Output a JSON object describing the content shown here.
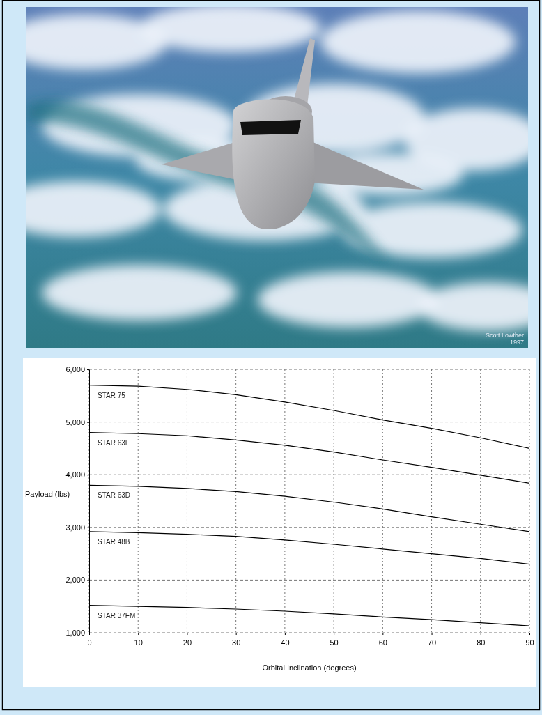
{
  "image": {
    "credit": [
      "Scott Lowther",
      "1997"
    ]
  },
  "chart_data": {
    "type": "line",
    "x_label": "Orbital Inclination (degrees)",
    "y_label": "Payload (lbs)",
    "x": [
      0,
      10,
      20,
      30,
      40,
      50,
      60,
      70,
      80,
      90
    ],
    "xlim": [
      0,
      90
    ],
    "xticks": [
      0,
      10,
      20,
      30,
      40,
      50,
      60,
      70,
      80,
      90
    ],
    "ylim": [
      1000,
      6000
    ],
    "yticks": [
      {
        "value": 1000,
        "label": "1,000"
      },
      {
        "value": 2000,
        "label": "2,000"
      },
      {
        "value": 3000,
        "label": "3,000"
      },
      {
        "value": 4000,
        "label": "4,000"
      },
      {
        "value": 5000,
        "label": "5,000"
      },
      {
        "value": 6000,
        "label": "6,000"
      }
    ],
    "grid": true,
    "line_style": "solid",
    "series": [
      {
        "name": "STAR 75",
        "color": "#000000",
        "values": [
          5700,
          5680,
          5620,
          5520,
          5380,
          5220,
          5040,
          4880,
          4700,
          4500
        ]
      },
      {
        "name": "STAR 63F",
        "color": "#000000",
        "values": [
          4800,
          4780,
          4740,
          4660,
          4560,
          4430,
          4280,
          4140,
          3990,
          3840
        ]
      },
      {
        "name": "STAR 63D",
        "color": "#000000",
        "values": [
          3800,
          3780,
          3740,
          3680,
          3590,
          3480,
          3350,
          3200,
          3060,
          2920
        ]
      },
      {
        "name": "STAR 48B",
        "color": "#000000",
        "values": [
          2920,
          2900,
          2870,
          2830,
          2760,
          2680,
          2590,
          2500,
          2410,
          2300
        ]
      },
      {
        "name": "STAR 37FM",
        "color": "#000000",
        "values": [
          1520,
          1500,
          1480,
          1450,
          1410,
          1360,
          1300,
          1250,
          1190,
          1130
        ]
      }
    ]
  }
}
